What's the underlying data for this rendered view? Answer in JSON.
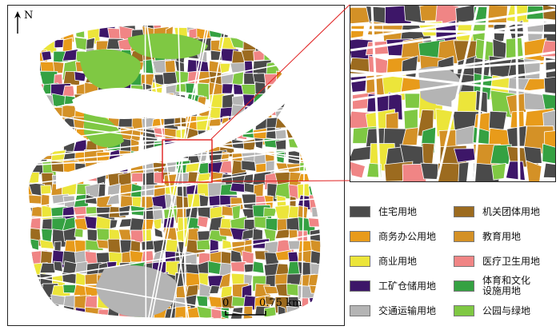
{
  "map": {
    "north_label": "N",
    "scale_start": "0",
    "scale_end": "0.75 km"
  },
  "legend": {
    "items": [
      {
        "label": "住宅用地",
        "color": "#4a4a4a"
      },
      {
        "label": "机关团体用地",
        "color": "#9c6b1f"
      },
      {
        "label": "商务办公用地",
        "color": "#e89b1a"
      },
      {
        "label": "教育用地",
        "color": "#d49126"
      },
      {
        "label": "商业用地",
        "color": "#ece53a"
      },
      {
        "label": "医疗卫生用地",
        "color": "#f08585"
      },
      {
        "label": "工矿仓储用地",
        "color": "#3d1668"
      },
      {
        "label": "体育和文化\n设施用地",
        "color": "#35a142"
      },
      {
        "label": "交通运输用地",
        "color": "#b4b4b4"
      },
      {
        "label": "公园与绿地",
        "color": "#7fc843"
      }
    ]
  },
  "colors": {
    "residential": "#4a4a4a",
    "office": "#e89b1a",
    "education": "#d49126",
    "institution": "#9c6b1f",
    "commercial": "#ece53a",
    "medical": "#f08585",
    "industrial": "#3d1668",
    "sports": "#35a142",
    "transport": "#b4b4b4",
    "park": "#7fc843",
    "highlight": "#e02020"
  }
}
